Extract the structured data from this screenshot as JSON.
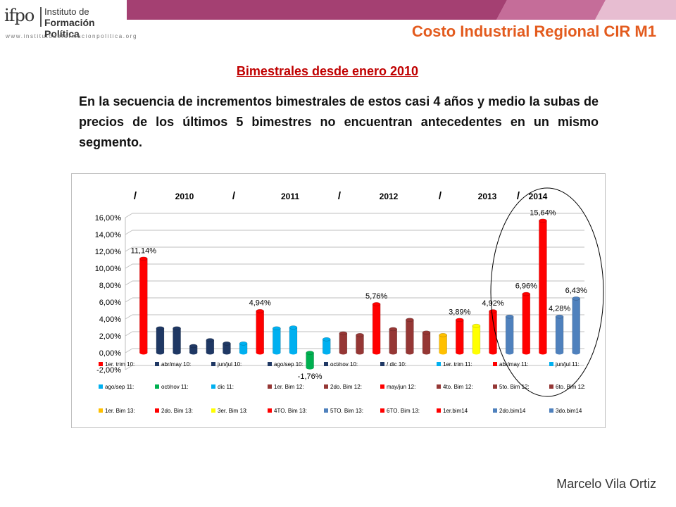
{
  "header": {
    "logo_text": "ifpo",
    "logo_line1": "Instituto de",
    "logo_line2": "Formación Política",
    "logo_web": "www.institutodeformacionpolitica.org",
    "title": "Costo Industrial Regional CIR M1",
    "accent_color": "#e35b1e"
  },
  "subtitle": "Bimestrales desde enero 2010",
  "body_text": "En la secuencia de incrementos bimestrales de estos casi 4 años y medio la subas de precios de los últimos 5 bimestres no encuentran antecedentes en un mismo segmento.",
  "author": "Marcelo Vila Ortiz",
  "chart_data": {
    "type": "bar",
    "title": "/ 2010 / 2011 / 2012 / 2013 / 2014",
    "year_header": [
      "/",
      "2010",
      "/",
      "2011",
      "/",
      "2012",
      "/",
      "2013",
      "/",
      "2014"
    ],
    "ylim": [
      -2,
      16
    ],
    "y_ticks": [
      "-2,00%",
      "0,00%",
      "2,00%",
      "4,00%",
      "6,00%",
      "8,00%",
      "10,00%",
      "12,00%",
      "14,00%",
      "16,00%"
    ],
    "categories": [
      "1er. trim 10:",
      "abr/may 10:",
      "jun/jul 10:",
      "ago/sep 10:",
      "oct/nov 10:",
      "/ dic 10:",
      "1er. trim 11:",
      "abr/may 11:",
      "jun/jul 11:",
      "ago/sep 11:",
      "oct/nov 11:",
      "dic 11:",
      "1er. Bim 12:",
      "2do. Bim 12:",
      "may/jun 12:",
      "4to. Bim 12:",
      "5to. Bim 12:",
      "6to. Bim 12:",
      "1er. Bim 13:",
      "2do. Bim 13:",
      "3er. Bim 13:",
      "4TO. Bim 13:",
      "5TO. Bim 13:",
      "6TO. Bim 13:",
      "1er.bim14",
      "2do.bim14",
      "3do.bim14"
    ],
    "values": [
      11.14,
      2.9,
      2.9,
      0.8,
      1.5,
      1.1,
      1.1,
      4.94,
      2.9,
      3.0,
      -1.76,
      1.6,
      2.3,
      2.1,
      5.76,
      2.8,
      3.9,
      2.4,
      2.1,
      3.89,
      3.2,
      4.92,
      4.28,
      6.96,
      15.64,
      4.28,
      6.43
    ],
    "colors": [
      "#ff0000",
      "#1f3864",
      "#1f3864",
      "#1f3864",
      "#1f3864",
      "#1f3864",
      "#00b0f0",
      "#ff0000",
      "#00b0f0",
      "#00b0f0",
      "#00b050",
      "#00b0f0",
      "#953735",
      "#953735",
      "#ff0000",
      "#953735",
      "#953735",
      "#953735",
      "#ffc000",
      "#ff0000",
      "#ffff00",
      "#ff0000",
      "#4f81bd",
      "#ff0000",
      "#ff0000",
      "#4f81bd",
      "#4f81bd"
    ],
    "data_labels": {
      "0": "11,14%",
      "7": "4,94%",
      "10": "-1,76%",
      "14": "5,76%",
      "19": "3,89%",
      "21": "4,92%",
      "23": "6,96%",
      "24": "15,64%",
      "25": "4,28%",
      "26": "6,43%"
    },
    "legend_position": "bottom",
    "grid": true,
    "annotation": "ellipse highlighting the last five bimesters"
  }
}
